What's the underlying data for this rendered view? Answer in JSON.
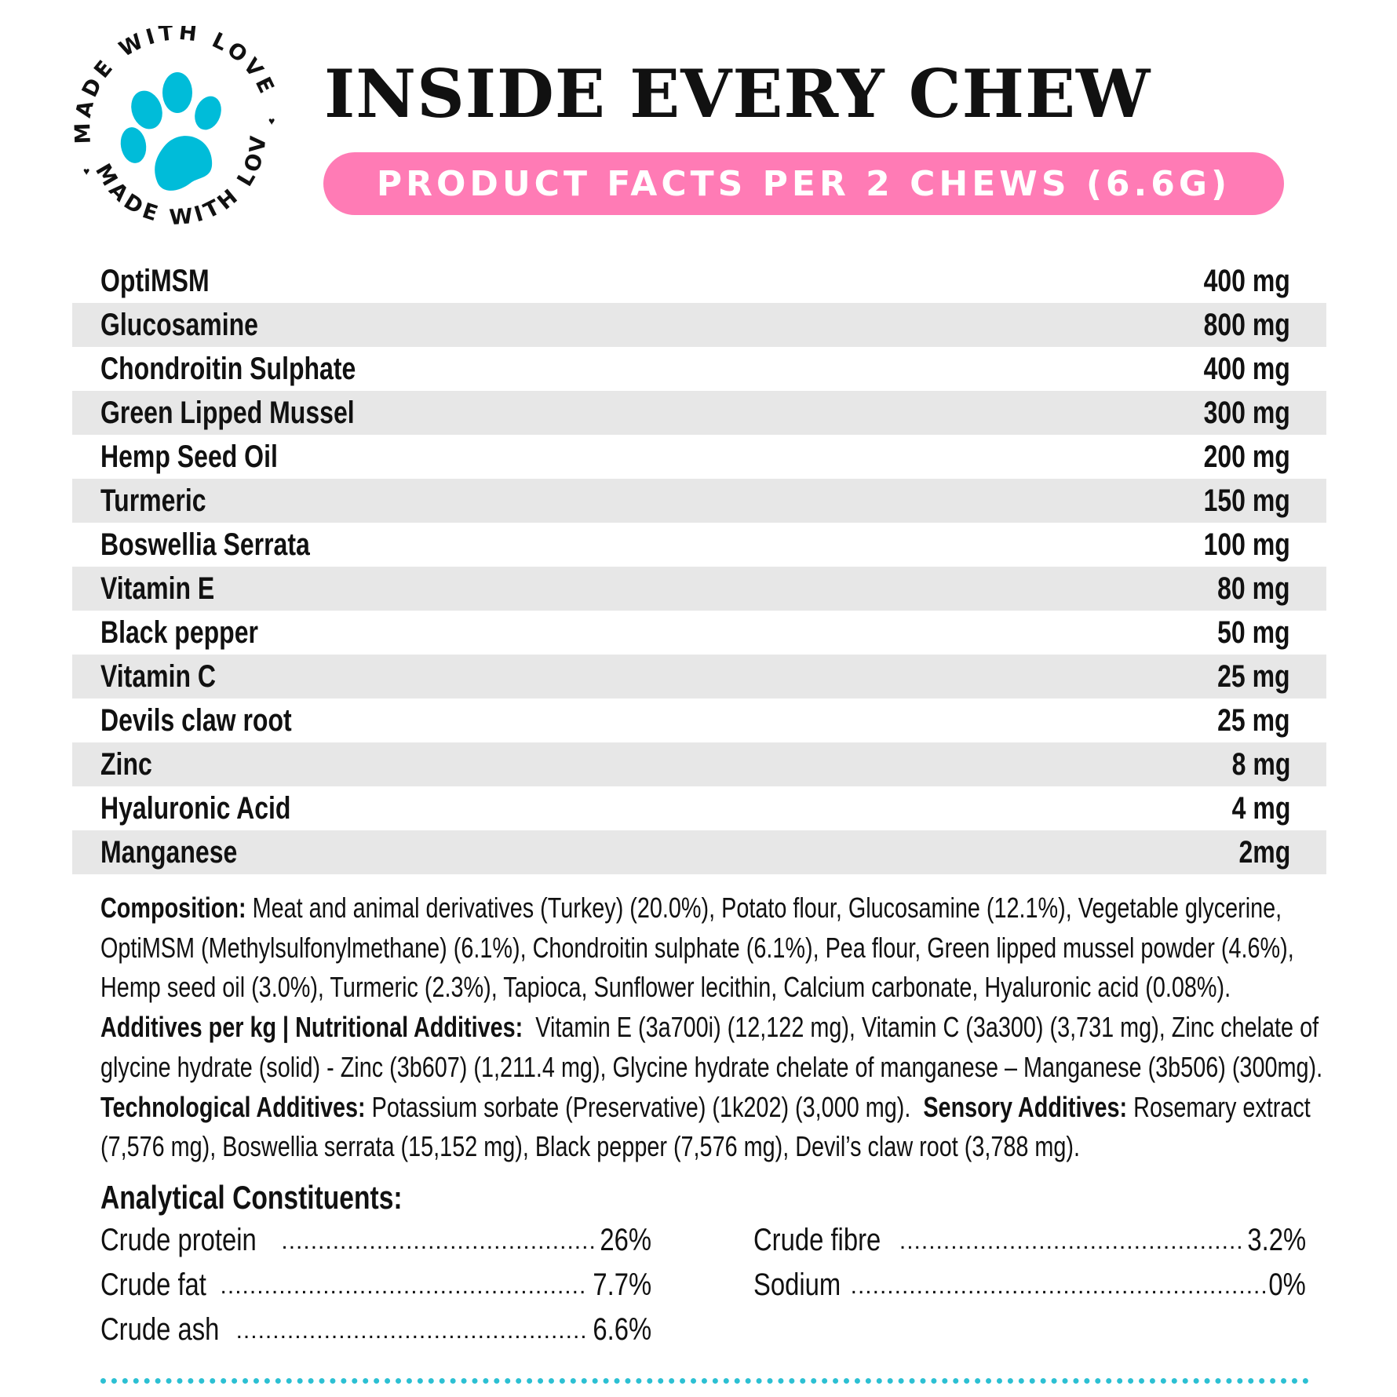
{
  "logo": {
    "text_top": "MADE WITH LOVE",
    "text_bottom": "MADE WITH LOVE",
    "icon": "paw-icon",
    "paw_color": "#00bcd9"
  },
  "header": {
    "title": "INSIDE EVERY CHEW",
    "subtitle": "PRODUCT FACTS PER 2 CHEWS (6.6G)",
    "accent": "#ff7bb5"
  },
  "facts": [
    {
      "name": "OptiMSM",
      "amount": "400 mg"
    },
    {
      "name": "Glucosamine",
      "amount": "800 mg"
    },
    {
      "name": "Chondroitin Sulphate",
      "amount": "400 mg"
    },
    {
      "name": "Green Lipped Mussel",
      "amount": "300 mg"
    },
    {
      "name": "Hemp Seed Oil",
      "amount": "200 mg"
    },
    {
      "name": "Turmeric",
      "amount": "150 mg"
    },
    {
      "name": "Boswellia Serrata",
      "amount": "100 mg"
    },
    {
      "name": "Vitamin E",
      "amount": "80 mg"
    },
    {
      "name": "Black pepper",
      "amount": "50 mg"
    },
    {
      "name": "Vitamin C",
      "amount": "25 mg"
    },
    {
      "name": "Devils claw root",
      "amount": "25 mg"
    },
    {
      "name": "Zinc",
      "amount": "8 mg"
    },
    {
      "name": "Hyaluronic Acid",
      "amount": "4 mg"
    },
    {
      "name": "Manganese",
      "amount": "2mg"
    }
  ],
  "composition": {
    "label": "Composition:",
    "text": " Meat and animal derivatives (Turkey) (20.0%), Potato flour, Glucosamine (12.1%), Vegetable glycerine, OptiMSM (Methylsulfonylmethane) (6.1%), Chondroitin sulphate (6.1%), Pea flour, Green lipped mussel powder (4.6%), Hemp seed oil (3.0%), Turmeric (2.3%), Tapioca, Sunflower lecithin, Calcium carbonate, Hyaluronic acid (0.08%)."
  },
  "additives": {
    "nutritional_label": "Additives per kg | Nutritional Additives:",
    "nutritional_text": "  Vitamin E (3a700i) (12,122 mg), Vitamin C (3a300) (3,731 mg), Zinc chelate of glycine hydrate (solid) - Zinc (3b607) (1,211.4 mg), Glycine hydrate chelate of manganese – Manganese (3b506) (300mg). ",
    "technological_label": "Technological Additives:",
    "technological_text": " Potassium sorbate (Preservative) (1k202) (3,000 mg).  ",
    "sensory_label": "Sensory Additives:",
    "sensory_text": " Rosemary extract (7,576 mg), Boswellia serrata (15,152 mg), Black pepper (7,576 mg), Devil’s claw root (3,788 mg)."
  },
  "analytical": {
    "title": "Analytical Constituents:",
    "left": [
      {
        "label": "Crude protein",
        "value": "26%"
      },
      {
        "label": "Crude fat",
        "value": "7.7%"
      },
      {
        "label": "Crude ash",
        "value": "6.6%"
      }
    ],
    "right": [
      {
        "label": "Crude fibre",
        "value": "3.2%"
      },
      {
        "label": "Sodium",
        "value": "0%"
      }
    ]
  },
  "divider_color": "#2cc0d3"
}
